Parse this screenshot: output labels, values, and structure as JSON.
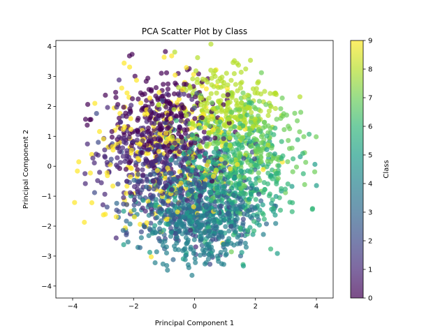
{
  "chart_data": {
    "type": "scatter",
    "title": "PCA Scatter Plot by Class",
    "xlabel": "Principal Component 1",
    "ylabel": "Principal Component 2",
    "xlim": [
      -4.55,
      4.55
    ],
    "ylim": [
      -4.4,
      4.2
    ],
    "xticks": [
      -4,
      -2,
      0,
      2,
      4
    ],
    "yticks": [
      -4,
      -3,
      -2,
      -1,
      0,
      1,
      2,
      3,
      4
    ],
    "xtick_labels": [
      "−4",
      "−2",
      "0",
      "2",
      "4"
    ],
    "ytick_labels": [
      "−4",
      "−3",
      "−2",
      "−1",
      "0",
      "1",
      "2",
      "3",
      "4"
    ],
    "grid": false,
    "colormap": "viridis",
    "point_alpha": 0.7,
    "colorbar": {
      "label": "Class",
      "range": [
        0,
        9
      ],
      "ticks": [
        0,
        1,
        2,
        3,
        4,
        5,
        6,
        7,
        8,
        9
      ],
      "tick_labels": [
        "0",
        "1",
        "2",
        "3",
        "4",
        "5",
        "6",
        "7",
        "8",
        "9"
      ]
    },
    "classes": [
      {
        "class": 0,
        "center": [
          -1.0,
          1.5
        ],
        "spread": [
          0.9,
          0.8
        ]
      },
      {
        "class": 1,
        "center": [
          -1.3,
          0.3
        ],
        "spread": [
          1.0,
          1.0
        ]
      },
      {
        "class": 2,
        "center": [
          -0.6,
          -0.6
        ],
        "spread": [
          1.0,
          1.0
        ]
      },
      {
        "class": 3,
        "center": [
          0.3,
          -1.4
        ],
        "spread": [
          0.9,
          0.8
        ]
      },
      {
        "class": 4,
        "center": [
          0.0,
          -2.0
        ],
        "spread": [
          0.9,
          0.7
        ]
      },
      {
        "class": 5,
        "center": [
          0.6,
          -1.0
        ],
        "spread": [
          1.1,
          0.9
        ]
      },
      {
        "class": 6,
        "center": [
          1.5,
          -0.3
        ],
        "spread": [
          1.0,
          1.0
        ]
      },
      {
        "class": 7,
        "center": [
          1.7,
          0.7
        ],
        "spread": [
          0.9,
          0.9
        ]
      },
      {
        "class": 8,
        "center": [
          1.0,
          1.9
        ],
        "spread": [
          0.8,
          0.7
        ]
      },
      {
        "class": 9,
        "center": [
          -1.0,
          0.4
        ],
        "spread": [
          1.2,
          1.3
        ]
      }
    ],
    "points_per_class": 250
  },
  "colors": {
    "viridis_stops": [
      "#440154",
      "#482878",
      "#3e4a89",
      "#31688e",
      "#26828e",
      "#1f9e89",
      "#35b779",
      "#6ece58",
      "#b5de2b",
      "#fde725"
    ]
  }
}
